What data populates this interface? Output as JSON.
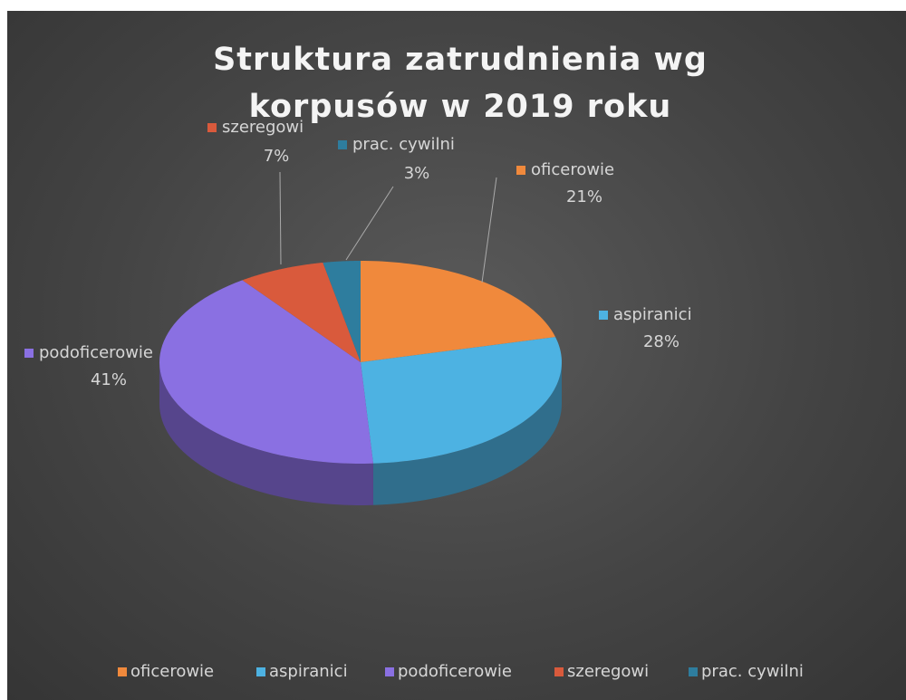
{
  "chart_data": {
    "type": "pie",
    "title": "Struktura zatrudnienia wg korpusów w 2019 roku",
    "categories": [
      "oficerowie",
      "aspiranici",
      "podoficerowie",
      "szeregowi",
      "prac. cywilni"
    ],
    "values": [
      21,
      28,
      41,
      7,
      3
    ],
    "value_labels": [
      "21%",
      "28%",
      "41%",
      "7%",
      "3%"
    ],
    "colors": [
      "#f0893c",
      "#4db2e2",
      "#8a70e2",
      "#d95a3c",
      "#2e7d9e"
    ],
    "legend": "bottom"
  }
}
